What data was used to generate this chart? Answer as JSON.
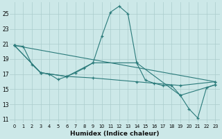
{
  "xlabel": "Humidex (Indice chaleur)",
  "ylabel": "",
  "background_color": "#cce8e8",
  "grid_color": "#aacccc",
  "line_color": "#2a7a7a",
  "xlim": [
    -0.5,
    23.5
  ],
  "ylim": [
    10.5,
    26.5
  ],
  "yticks": [
    11,
    13,
    15,
    17,
    19,
    21,
    23,
    25
  ],
  "xticks": [
    0,
    1,
    2,
    3,
    4,
    5,
    6,
    7,
    8,
    9,
    10,
    11,
    12,
    13,
    14,
    15,
    16,
    17,
    18,
    19,
    20,
    21,
    22,
    23
  ],
  "lines": [
    {
      "x": [
        0,
        1,
        2,
        3,
        4,
        5,
        6,
        7,
        8,
        9,
        10,
        11,
        12,
        13,
        14,
        15,
        16,
        17,
        18,
        19,
        20,
        21,
        22,
        23
      ],
      "y": [
        20.8,
        20.7,
        18.3,
        17.2,
        17.0,
        16.3,
        16.7,
        17.2,
        17.8,
        18.5,
        22.0,
        25.2,
        26.0,
        25.0,
        18.5,
        16.2,
        15.8,
        15.5,
        15.5,
        14.2,
        12.4,
        11.2,
        15.2,
        15.6
      ]
    },
    {
      "x": [
        0,
        3,
        6,
        9,
        14,
        19,
        23
      ],
      "y": [
        20.8,
        17.2,
        16.7,
        18.5,
        18.5,
        14.2,
        15.6
      ]
    },
    {
      "x": [
        0,
        3,
        6,
        9,
        14,
        19,
        23
      ],
      "y": [
        20.8,
        17.2,
        16.7,
        16.5,
        16.0,
        15.5,
        16.0
      ]
    },
    {
      "x": [
        0,
        23
      ],
      "y": [
        20.8,
        16.0
      ]
    }
  ]
}
